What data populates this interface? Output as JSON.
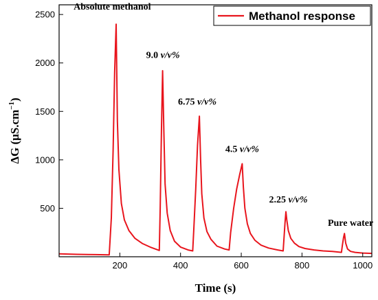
{
  "chart_data": {
    "type": "line",
    "xlabel": "Time (s)",
    "ylabel_main": "ΔG (μS.cm",
    "ylabel_sup": "−1",
    "ylabel_close": ")",
    "xlim": [
      0,
      1030
    ],
    "ylim": [
      0,
      2600
    ],
    "x_ticks": [
      200,
      400,
      600,
      800,
      1000
    ],
    "y_ticks": [
      500,
      1000,
      1500,
      2000,
      2500
    ],
    "color": "#e8141c",
    "legend": {
      "label": "Methanol response",
      "placement": "top-right"
    },
    "series": [
      {
        "name": "Methanol response",
        "points": [
          [
            0,
            30
          ],
          [
            60,
            25
          ],
          [
            120,
            22
          ],
          [
            165,
            20
          ],
          [
            172,
            400
          ],
          [
            178,
            1100
          ],
          [
            183,
            1900
          ],
          [
            188,
            2400
          ],
          [
            192,
            1400
          ],
          [
            197,
            900
          ],
          [
            205,
            550
          ],
          [
            215,
            380
          ],
          [
            230,
            270
          ],
          [
            250,
            190
          ],
          [
            275,
            135
          ],
          [
            300,
            100
          ],
          [
            330,
            65
          ],
          [
            333,
            500
          ],
          [
            337,
            1300
          ],
          [
            341,
            1920
          ],
          [
            345,
            1300
          ],
          [
            349,
            750
          ],
          [
            356,
            450
          ],
          [
            366,
            270
          ],
          [
            380,
            160
          ],
          [
            400,
            100
          ],
          [
            425,
            70
          ],
          [
            440,
            60
          ],
          [
            444,
            300
          ],
          [
            450,
            700
          ],
          [
            456,
            1150
          ],
          [
            462,
            1450
          ],
          [
            466,
            1000
          ],
          [
            470,
            650
          ],
          [
            477,
            400
          ],
          [
            487,
            260
          ],
          [
            500,
            180
          ],
          [
            520,
            110
          ],
          [
            545,
            80
          ],
          [
            560,
            70
          ],
          [
            565,
            250
          ],
          [
            575,
            500
          ],
          [
            585,
            700
          ],
          [
            595,
            850
          ],
          [
            603,
            960
          ],
          [
            607,
            720
          ],
          [
            612,
            500
          ],
          [
            620,
            340
          ],
          [
            630,
            240
          ],
          [
            645,
            170
          ],
          [
            665,
            120
          ],
          [
            690,
            90
          ],
          [
            720,
            70
          ],
          [
            738,
            60
          ],
          [
            741,
            200
          ],
          [
            744,
            350
          ],
          [
            747,
            465
          ],
          [
            750,
            380
          ],
          [
            755,
            270
          ],
          [
            763,
            190
          ],
          [
            775,
            140
          ],
          [
            790,
            105
          ],
          [
            810,
            85
          ],
          [
            840,
            70
          ],
          [
            870,
            60
          ],
          [
            900,
            55
          ],
          [
            930,
            45
          ],
          [
            933,
            120
          ],
          [
            937,
            200
          ],
          [
            940,
            240
          ],
          [
            944,
            140
          ],
          [
            950,
            80
          ],
          [
            960,
            55
          ],
          [
            975,
            45
          ],
          [
            1000,
            38
          ],
          [
            1030,
            35
          ]
        ]
      }
    ],
    "annotations": [
      {
        "text": "Absolute methanol",
        "italic_suffix": "",
        "x": 175,
        "y": 2550
      },
      {
        "text": "9.0 ",
        "italic_suffix": "v/v%",
        "x": 342,
        "y": 2050
      },
      {
        "text": "6.75 ",
        "italic_suffix": "v/v%",
        "x": 455,
        "y": 1570
      },
      {
        "text": "4.5 ",
        "italic_suffix": "v/v%",
        "x": 603,
        "y": 1080
      },
      {
        "text": "2.25 ",
        "italic_suffix": "v/v%",
        "x": 755,
        "y": 560
      },
      {
        "text": "Pure water",
        "italic_suffix": "",
        "x": 960,
        "y": 320
      }
    ]
  }
}
